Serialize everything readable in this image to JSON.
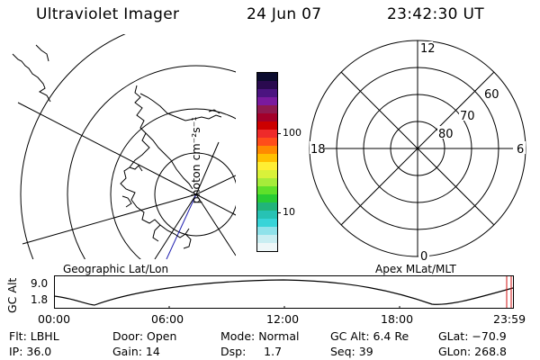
{
  "header": {
    "title": "Ultraviolet Imager",
    "date": "24 Jun 07",
    "time": "23:42:30 UT"
  },
  "colorbar": {
    "unit_label": "photon cm⁻²s⁻¹",
    "tick_100": "100",
    "tick_10": "10",
    "colors": [
      "#0b0b2e",
      "#2a0a4f",
      "#4b1480",
      "#7a1a9e",
      "#8e1a4f",
      "#a3002a",
      "#cc0000",
      "#ee2a2a",
      "#ff4d1a",
      "#ff8a00",
      "#ffc000",
      "#ffee33",
      "#d9f23a",
      "#a6ec3a",
      "#5fe02a",
      "#28cc33",
      "#21b47a",
      "#27c2b4",
      "#37d4d8",
      "#8fe2ea",
      "#c9eef2",
      "#eef7f8"
    ]
  },
  "polar": {
    "mlt_12": "12",
    "mlt_18": "18",
    "mlt_6": "6",
    "mlt_0": "0",
    "lat_60": "60",
    "lat_70": "70",
    "lat_80": "80"
  },
  "labels": {
    "geo": "Geographic Lat/Lon",
    "apex": "Apex MLat/MLT"
  },
  "altitude_plot": {
    "ylabel": "GC Alt",
    "y_top": "9.0",
    "y_bottom": "1.8",
    "xticks": [
      "00:00",
      "06:00",
      "12:00",
      "18:00",
      "23:59"
    ]
  },
  "info": {
    "row1": [
      "Flt: LBHL",
      "Door: Open",
      "Mode: Normal",
      "GC Alt: 6.4 Re",
      "GLat: −70.9"
    ],
    "row2": [
      "IP: 36.0",
      "Gain: 14",
      "Dsp:     1.7",
      "Seq: 39",
      "GLon: 268.8"
    ]
  }
}
